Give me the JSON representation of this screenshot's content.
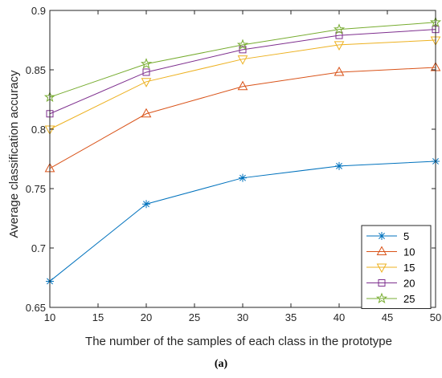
{
  "chart_data": {
    "type": "line",
    "xlabel": "The number of the samples of each class in the prototype",
    "ylabel": "Average classification accuracy",
    "x": [
      10,
      20,
      30,
      40,
      50
    ],
    "xlim": [
      10,
      50
    ],
    "ylim": [
      0.65,
      0.9
    ],
    "xticks": [
      "10",
      "15",
      "20",
      "25",
      "30",
      "35",
      "40",
      "45",
      "50"
    ],
    "yticks": [
      "0.65",
      "0.7",
      "0.75",
      "0.8",
      "0.85",
      "0.9"
    ],
    "grid": false,
    "legend_position": "bottom-right",
    "series": [
      {
        "name": "5",
        "marker": "asterisk",
        "color": "#0072BD",
        "values": [
          0.672,
          0.737,
          0.759,
          0.769,
          0.773
        ]
      },
      {
        "name": "10",
        "marker": "triangle-up",
        "color": "#D95319",
        "values": [
          0.767,
          0.813,
          0.836,
          0.848,
          0.852
        ]
      },
      {
        "name": "15",
        "marker": "triangle-down",
        "color": "#EDB120",
        "values": [
          0.8,
          0.84,
          0.859,
          0.871,
          0.875
        ]
      },
      {
        "name": "20",
        "marker": "square",
        "color": "#7E2F8E",
        "values": [
          0.813,
          0.848,
          0.867,
          0.879,
          0.884
        ]
      },
      {
        "name": "25",
        "marker": "pentagram",
        "color": "#77AC30",
        "values": [
          0.827,
          0.855,
          0.871,
          0.884,
          0.89
        ]
      }
    ]
  },
  "caption": "(a)"
}
